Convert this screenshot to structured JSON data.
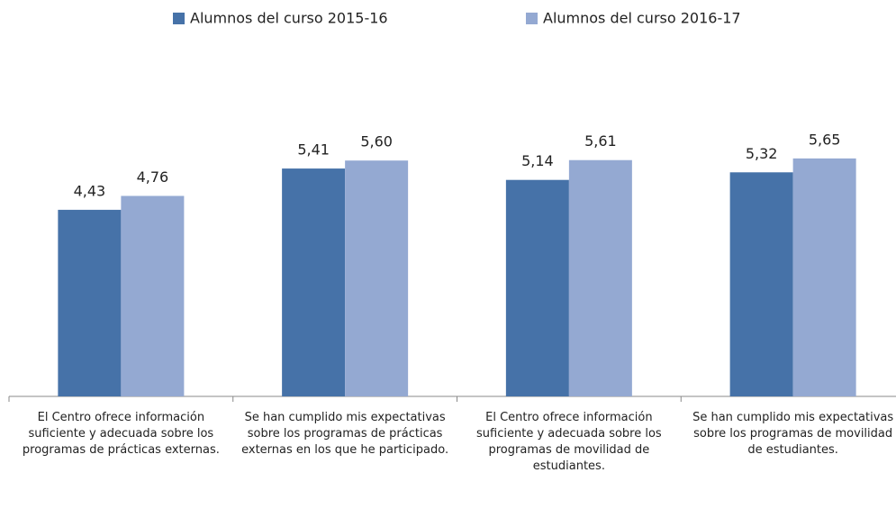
{
  "chart_data": {
    "type": "bar",
    "categories": [
      "El Centro ofrece información suficiente y adecuada sobre los programas de prácticas externas.",
      "Se han cumplido mis expectativas sobre los programas  de prácticas externas en los que he participado.",
      "El Centro ofrece información suficiente y adecuada sobre los programas de movilidad de estudiantes.",
      "Se han cumplido mis expectativas sobre los programas de movilidad de estudiantes."
    ],
    "series": [
      {
        "name": "Alumnos del curso 2015-16",
        "color": "#4672a8",
        "values": [
          4.43,
          5.41,
          5.14,
          5.32
        ],
        "value_labels": [
          "4,43",
          "5,41",
          "5,14",
          "5,32"
        ]
      },
      {
        "name": "Alumnos del curso 2016-17",
        "color": "#94a9d2",
        "values": [
          4.76,
          5.6,
          5.61,
          5.65
        ],
        "value_labels": [
          "4,76",
          "5,60",
          "5,61",
          "5,65"
        ]
      }
    ],
    "ylim": [
      0,
      8
    ],
    "legend": "top"
  }
}
